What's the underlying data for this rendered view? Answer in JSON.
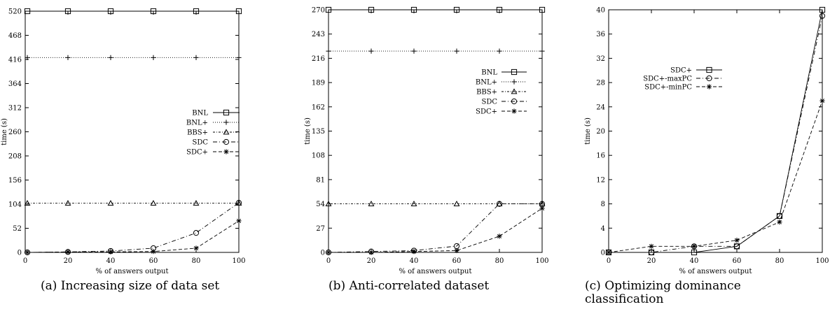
{
  "figure": {
    "captions": [
      "(a) Increasing size of data set",
      "(b) Anti-correlated dataset",
      "(c) Optimizing dominance classification"
    ]
  },
  "chart_data": [
    {
      "type": "line",
      "title": "",
      "xlabel": "% of answers output",
      "ylabel": "time (s)",
      "xlim": [
        0,
        100
      ],
      "ylim": [
        0,
        520
      ],
      "xticks": [
        0,
        20,
        40,
        60,
        80,
        100
      ],
      "yticks": [
        0,
        52,
        104,
        156,
        208,
        260,
        312,
        364,
        416,
        468,
        520
      ],
      "legend_position": "middle-right",
      "grid": false,
      "series": [
        {
          "name": "BNL",
          "marker": "square",
          "dash": "solid",
          "x": [
            1,
            20,
            40,
            60,
            80,
            100
          ],
          "y": [
            520,
            520,
            520,
            520,
            520,
            520
          ]
        },
        {
          "name": "BNL+",
          "marker": "plus",
          "dash": "dotted",
          "x": [
            1,
            20,
            40,
            60,
            80,
            100
          ],
          "y": [
            420,
            420,
            420,
            420,
            420,
            420
          ]
        },
        {
          "name": "BBS+",
          "marker": "triangle",
          "dash": "dashdot-fine",
          "x": [
            1,
            20,
            40,
            60,
            80,
            100
          ],
          "y": [
            106,
            106,
            106,
            106,
            106,
            106
          ]
        },
        {
          "name": "SDC",
          "marker": "circle",
          "dash": "dashdot",
          "x": [
            1,
            20,
            40,
            60,
            80,
            100
          ],
          "y": [
            0,
            1,
            3,
            9,
            42,
            107
          ]
        },
        {
          "name": "SDC+",
          "marker": "star",
          "dash": "dashed",
          "x": [
            1,
            20,
            40,
            60,
            80,
            100
          ],
          "y": [
            0,
            1,
            1,
            2,
            9,
            68
          ]
        }
      ]
    },
    {
      "type": "line",
      "title": "",
      "xlabel": "% of answers output",
      "ylabel": "time (s)",
      "xlim": [
        0,
        100
      ],
      "ylim": [
        0,
        270
      ],
      "xticks": [
        0,
        20,
        40,
        60,
        80,
        100
      ],
      "yticks": [
        0,
        27,
        54,
        81,
        108,
        135,
        162,
        189,
        216,
        243,
        270
      ],
      "legend_position": "upper-right",
      "grid": false,
      "series": [
        {
          "name": "BNL",
          "marker": "square",
          "dash": "solid",
          "x": [
            0,
            20,
            40,
            60,
            80,
            100
          ],
          "y": [
            270,
            270,
            270,
            270,
            270,
            270
          ]
        },
        {
          "name": "BNL+",
          "marker": "plus",
          "dash": "dotted",
          "x": [
            0,
            20,
            40,
            60,
            80,
            100
          ],
          "y": [
            224,
            224,
            224,
            224,
            224,
            224
          ]
        },
        {
          "name": "BBS+",
          "marker": "triangle",
          "dash": "dashdot-fine",
          "x": [
            0,
            20,
            40,
            60,
            80,
            100
          ],
          "y": [
            54,
            54,
            54,
            54,
            54,
            54
          ]
        },
        {
          "name": "SDC",
          "marker": "circle",
          "dash": "dashdot",
          "x": [
            0,
            20,
            40,
            60,
            80,
            100
          ],
          "y": [
            0,
            1,
            2,
            7,
            54,
            54
          ]
        },
        {
          "name": "SDC+",
          "marker": "star",
          "dash": "dashed",
          "x": [
            0,
            20,
            40,
            60,
            80,
            100
          ],
          "y": [
            0,
            0,
            1,
            2,
            18,
            49
          ]
        }
      ]
    },
    {
      "type": "line",
      "title": "",
      "xlabel": "% of answers output",
      "ylabel": "time (s)",
      "xlim": [
        0,
        100
      ],
      "ylim": [
        0,
        40
      ],
      "xticks": [
        0,
        20,
        40,
        60,
        80,
        100
      ],
      "yticks": [
        0,
        4,
        8,
        12,
        16,
        20,
        24,
        28,
        32,
        36,
        40
      ],
      "legend_position": "upper-middle",
      "grid": false,
      "series": [
        {
          "name": "SDC+",
          "marker": "square",
          "dash": "solid",
          "x": [
            0,
            20,
            40,
            60,
            80,
            100
          ],
          "y": [
            0,
            0,
            0,
            1,
            6,
            40
          ]
        },
        {
          "name": "SDC+-maxPC",
          "marker": "circle",
          "dash": "dashdot",
          "x": [
            0,
            20,
            40,
            60,
            80,
            100
          ],
          "y": [
            0,
            0,
            1,
            1,
            6,
            39
          ]
        },
        {
          "name": "SDC+-minPC",
          "marker": "star",
          "dash": "dashed",
          "x": [
            0,
            20,
            40,
            60,
            80,
            100
          ],
          "y": [
            0,
            1,
            1,
            2,
            5,
            25
          ]
        }
      ]
    }
  ]
}
